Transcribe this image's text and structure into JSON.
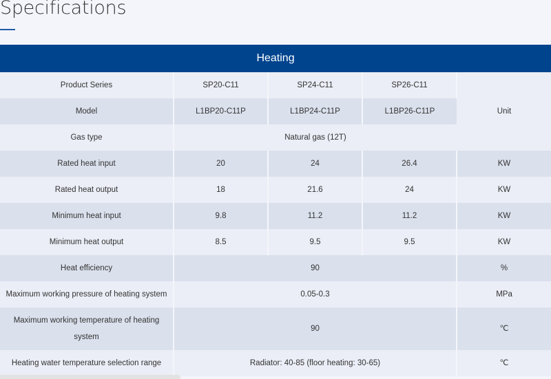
{
  "page_title": "Specifications",
  "table": {
    "section_title": "Heating",
    "series_label": "Product Series",
    "series": [
      "SP20-C11",
      "SP24-C11",
      "SP26-C11"
    ],
    "model_label": "Model",
    "models": [
      "L1BP20-C11P",
      "L1BP24-C11P",
      "L1BP26-C11P"
    ],
    "unit_label": "Unit",
    "gas_label": "Gas type",
    "gas_value": "Natural gas (12T)",
    "rows": [
      {
        "label": "Rated heat input",
        "values": [
          "20",
          "24",
          "26.4"
        ],
        "unit": "KW"
      },
      {
        "label": "Rated heat output",
        "values": [
          "18",
          "21.6",
          "24"
        ],
        "unit": "KW"
      },
      {
        "label": "Minimum heat input",
        "values": [
          "9.8",
          "11.2",
          "11.2"
        ],
        "unit": "KW"
      },
      {
        "label": "Minimum heat output",
        "values": [
          "8.5",
          "9.5",
          "9.5"
        ],
        "unit": "KW"
      }
    ],
    "merged_rows": [
      {
        "label": "Heat efficiency",
        "value": "90",
        "unit": "%"
      },
      {
        "label": "Maximum working pressure of heating system",
        "value": "0.05-0.3",
        "unit": "MPa"
      },
      {
        "label": "Maximum working temperature of heating system",
        "value": "90",
        "unit": "℃"
      },
      {
        "label": "Heating water temperature selection range",
        "value": "Radiator: 40-85 (floor heating: 30-65)",
        "unit": "℃"
      }
    ]
  },
  "colors": {
    "header": "#00448e",
    "row_light": "#ebeef6",
    "row_dark": "#dae0ec"
  }
}
